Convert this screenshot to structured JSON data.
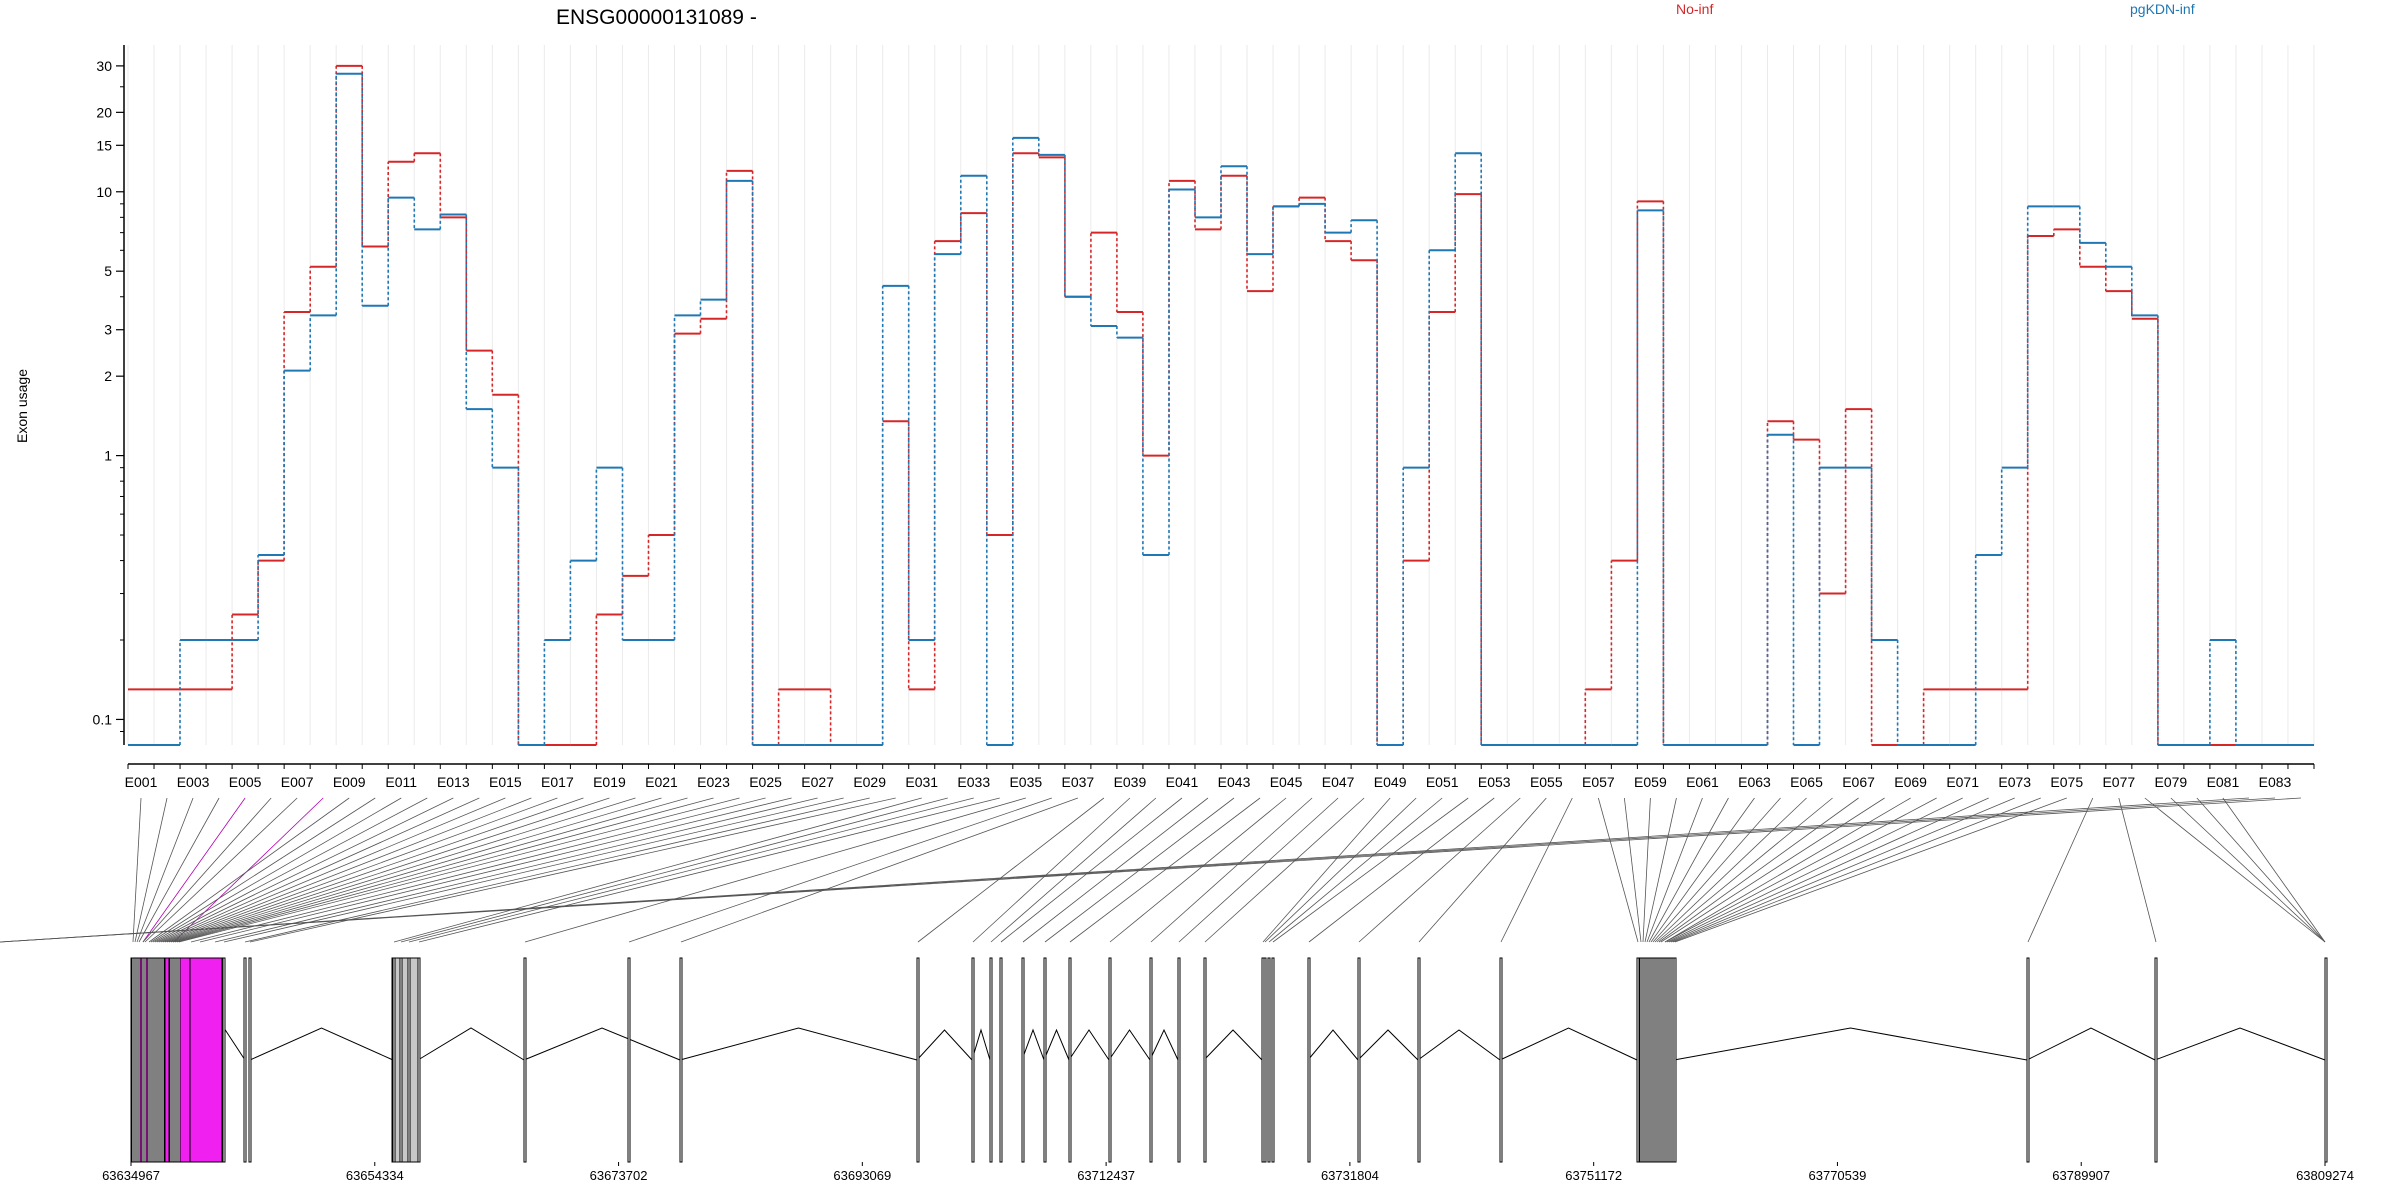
{
  "chart_data": {
    "type": "line",
    "title": "ENSG00000131089 -",
    "ylabel": "Exon usage",
    "yscale": "log",
    "ylim": [
      0.08,
      36
    ],
    "yticks": [
      0.1,
      1,
      2,
      3,
      5,
      10,
      15,
      20,
      30
    ],
    "ytick_labels": [
      "0.1",
      "1",
      "2",
      "3",
      "5",
      "10",
      "15",
      "20",
      "30"
    ],
    "grid": "vertical",
    "legend": "top",
    "categories": [
      "E001",
      "E002",
      "E003",
      "E004",
      "E005",
      "E006",
      "E007",
      "E008",
      "E009",
      "E010",
      "E011",
      "E012",
      "E013",
      "E014",
      "E015",
      "E016",
      "E017",
      "E018",
      "E019",
      "E020",
      "E021",
      "E022",
      "E023",
      "E024",
      "E025",
      "E026",
      "E027",
      "E028",
      "E029",
      "E030",
      "E031",
      "E032",
      "E033",
      "E034",
      "E035",
      "E036",
      "E037",
      "E038",
      "E039",
      "E040",
      "E041",
      "E042",
      "E043",
      "E044",
      "E045",
      "E046",
      "E047",
      "E048",
      "E049",
      "E050",
      "E051",
      "E052",
      "E053",
      "E054",
      "E055",
      "E056",
      "E057",
      "E058",
      "E059",
      "E060",
      "E061",
      "E062",
      "E063",
      "E064",
      "E065",
      "E066",
      "E067",
      "E068",
      "E069",
      "E070",
      "E071",
      "E072",
      "E073",
      "E074",
      "E075",
      "E076",
      "E077",
      "E078",
      "E079",
      "E080",
      "E081",
      "E082",
      "E083",
      "E084"
    ],
    "xtick_labels": [
      "E001",
      "E003",
      "E005",
      "E007",
      "E009",
      "E011",
      "E013",
      "E015",
      "E017",
      "E019",
      "E021",
      "E023",
      "E025",
      "E027",
      "E029",
      "E031",
      "E033",
      "E035",
      "E037",
      "E039",
      "E041",
      "E043",
      "E045",
      "E047",
      "E049",
      "E051",
      "E053",
      "E055",
      "E057",
      "E059",
      "E061",
      "E063",
      "E065",
      "E067",
      "E069",
      "E071",
      "E073",
      "E075",
      "E077",
      "E079",
      "E081",
      "E083"
    ],
    "series": [
      {
        "name": "No-inf",
        "color": "#d62728",
        "values": [
          0.13,
          0.13,
          0.13,
          0.13,
          0.25,
          0.4,
          3.5,
          5.2,
          30,
          6.2,
          13,
          14,
          8,
          2.5,
          1.7,
          0.08,
          0.08,
          0.08,
          0.25,
          0.35,
          0.5,
          2.9,
          3.3,
          12,
          0.08,
          0.13,
          0.13,
          0.08,
          0.08,
          1.35,
          0.13,
          6.5,
          8.3,
          0.5,
          14,
          13.5,
          4,
          7,
          3.5,
          1,
          11,
          7.2,
          11.5,
          4.2,
          8.8,
          9.5,
          6.5,
          5.5,
          0.08,
          0.4,
          3.5,
          9.8,
          0.08,
          0.08,
          0.08,
          0.08,
          0.13,
          0.4,
          9.2,
          0.08,
          0.08,
          0.08,
          0.08,
          1.35,
          1.15,
          0.3,
          1.5,
          0.08,
          0.08,
          0.13,
          0.13,
          0.13,
          0.13,
          6.8,
          7.2,
          5.2,
          4.2,
          3.3,
          0.08,
          0.08,
          0.08,
          0.08,
          0.08,
          0.08
        ]
      },
      {
        "name": "pgKDN-inf",
        "color": "#1f77b4",
        "values": [
          0.08,
          0.08,
          0.2,
          0.2,
          0.2,
          0.42,
          2.1,
          3.4,
          28,
          3.7,
          9.5,
          7.2,
          8.2,
          1.5,
          0.9,
          0.08,
          0.2,
          0.4,
          0.9,
          0.2,
          0.2,
          3.4,
          3.9,
          11,
          0.08,
          0.08,
          0.08,
          0.08,
          0.08,
          4.4,
          0.2,
          5.8,
          11.5,
          0.08,
          16,
          13.8,
          4,
          3.1,
          2.8,
          0.42,
          10.2,
          8,
          12.5,
          5.8,
          8.8,
          9,
          7,
          7.8,
          0.08,
          0.9,
          6,
          14,
          0.08,
          0.08,
          0.08,
          0.08,
          0.08,
          0.08,
          8.5,
          0.08,
          0.08,
          0.08,
          0.08,
          1.2,
          0.08,
          0.9,
          0.9,
          0.2,
          0.08,
          0.08,
          0.08,
          0.42,
          0.9,
          8.8,
          8.8,
          6.4,
          5.2,
          3.4,
          0.08,
          0.08,
          0.2,
          0.08,
          0.08,
          0.08
        ]
      }
    ],
    "genome_axis": {
      "range": [
        63634967,
        63809274
      ],
      "tick_labels": [
        "63634967",
        "63654334",
        "63673702",
        "63693069",
        "63712437",
        "63731804",
        "63751172",
        "63770539",
        "63789907",
        "63809274"
      ],
      "highlighted_exons": [
        "E005",
        "E008"
      ],
      "highlight_color": "#f020f0"
    }
  }
}
